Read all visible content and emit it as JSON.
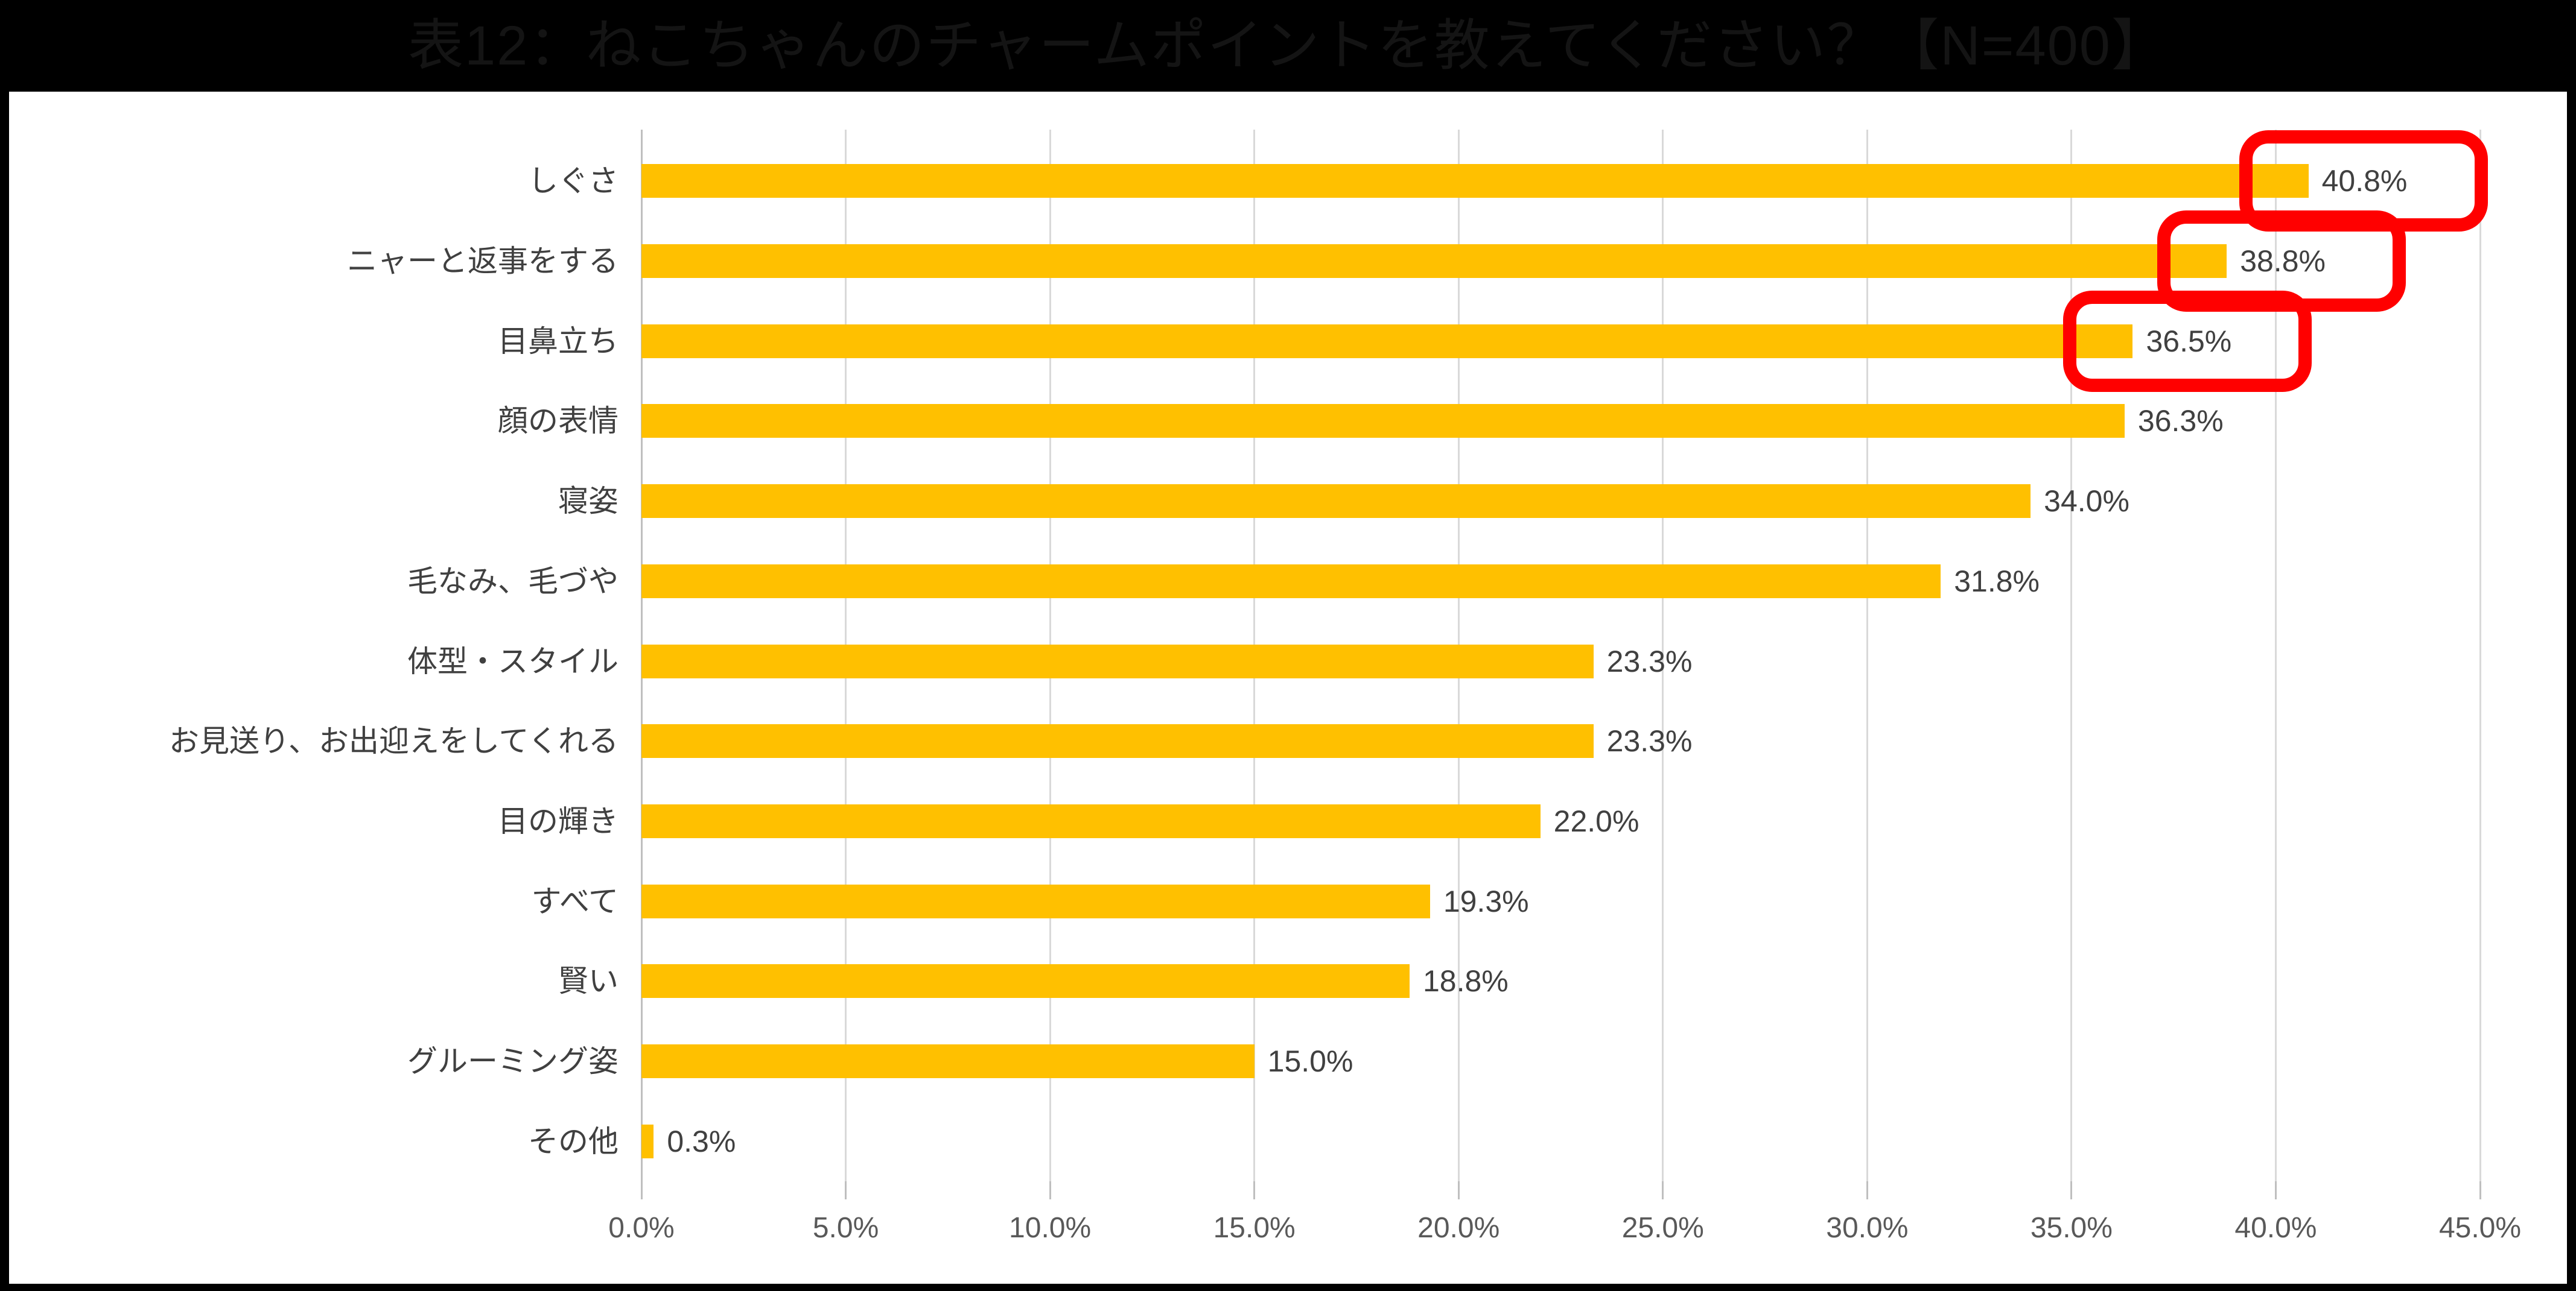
{
  "title": "表12：ねこちゃんのチャームポイントを教えてください？【N=400】",
  "chart_data": {
    "type": "bar",
    "orientation": "horizontal",
    "title": "表12：ねこちゃんのチャームポイントを教えてください？【N=400】",
    "categories": [
      "しぐさ",
      "ニャーと返事をする",
      "目鼻立ち",
      "顔の表情",
      "寝姿",
      "毛なみ、毛づや",
      "体型・スタイル",
      "お見送り、お出迎えをしてくれる",
      "目の輝き",
      "すべて",
      "賢い",
      "グルーミング姿",
      "その他"
    ],
    "values": [
      40.8,
      38.8,
      36.5,
      36.3,
      34.0,
      31.8,
      23.3,
      23.3,
      22.0,
      19.3,
      18.8,
      15.0,
      0.3
    ],
    "value_labels": [
      "40.8%",
      "38.8%",
      "36.5%",
      "36.3%",
      "34.0%",
      "31.8%",
      "23.3%",
      "23.3%",
      "22.0%",
      "19.3%",
      "18.8%",
      "15.0%",
      "0.3%"
    ],
    "xlabel": "",
    "ylabel": "",
    "xlim": [
      0,
      45
    ],
    "x_ticks": [
      0,
      5,
      10,
      15,
      20,
      25,
      30,
      35,
      40,
      45
    ],
    "x_tick_labels": [
      "0.0%",
      "5.0%",
      "10.0%",
      "15.0%",
      "20.0%",
      "25.0%",
      "30.0%",
      "35.0%",
      "40.0%",
      "45.0%"
    ],
    "grid": true,
    "legend_position": "none",
    "bar_color": "#FFC000",
    "gridline_color": "#d9d9d9",
    "axis_color": "#bfbfbf",
    "label_color": "#404040",
    "tick_label_color": "#595959",
    "highlight_color": "#ff0000",
    "highlighted_indices": [
      0,
      1,
      2
    ]
  }
}
